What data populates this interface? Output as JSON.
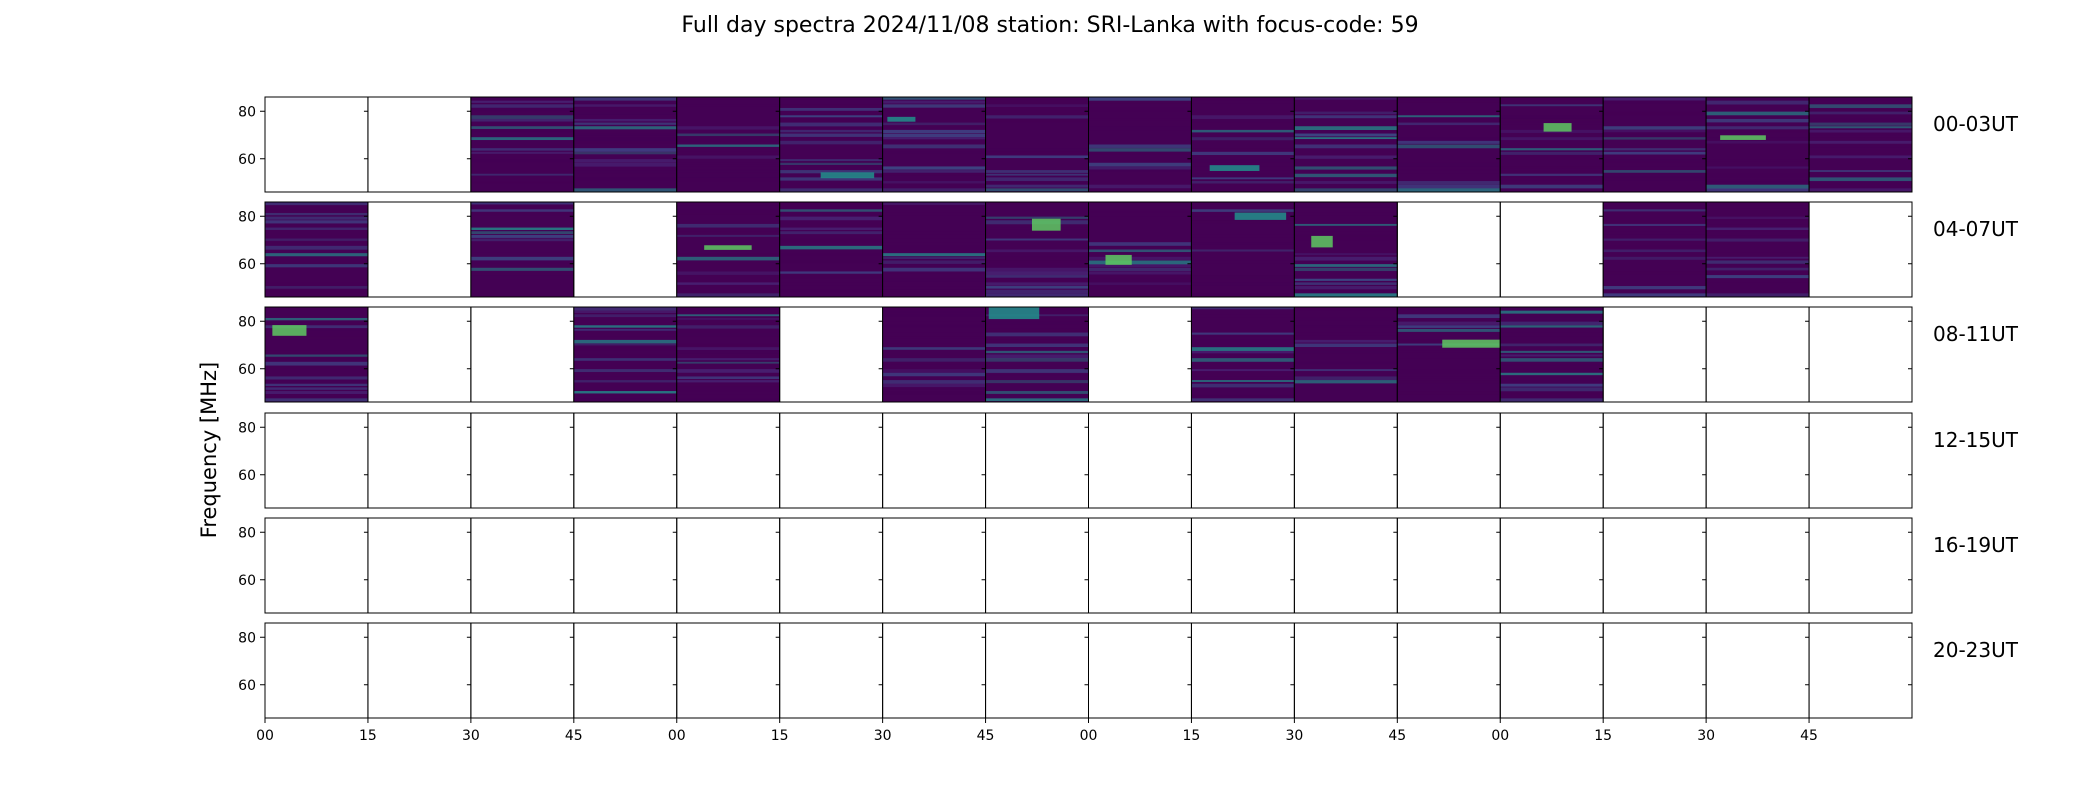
{
  "chart_data": {
    "type": "heatmap",
    "title": "Full day spectra 2024/11/08 station: SRI-Lanka with focus-code: 59",
    "ylabel": "Frequency [MHz]",
    "xlabel": "",
    "ylim": [
      46,
      86
    ],
    "yticks": [
      "60",
      "80"
    ],
    "xticks": [
      "00",
      "15",
      "30",
      "45",
      "00",
      "15",
      "30",
      "45",
      "00",
      "15",
      "30",
      "45",
      "00",
      "15",
      "30",
      "45"
    ],
    "colormap": "viridis",
    "row_labels": [
      "00-03UT",
      "04-07UT",
      "08-11UT",
      "12-15UT",
      "16-19UT",
      "20-23UT"
    ],
    "panels_per_row": 16,
    "panel_minutes": 15,
    "data_available": [
      [
        0,
        0,
        1,
        1,
        1,
        1,
        1,
        1,
        1,
        1,
        1,
        1,
        1,
        1,
        1,
        1
      ],
      [
        1,
        0,
        1,
        0,
        1,
        1,
        1,
        1,
        1,
        1,
        1,
        0,
        0,
        1,
        1,
        0
      ],
      [
        1,
        0,
        0,
        1,
        1,
        0,
        1,
        1,
        0,
        1,
        1,
        1,
        1,
        0,
        0,
        0
      ],
      [
        0,
        0,
        0,
        0,
        0,
        0,
        0,
        0,
        0,
        0,
        0,
        0,
        0,
        0,
        0,
        0
      ],
      [
        0,
        0,
        0,
        0,
        0,
        0,
        0,
        0,
        0,
        0,
        0,
        0,
        0,
        0,
        0,
        0
      ],
      [
        0,
        0,
        0,
        0,
        0,
        0,
        0,
        0,
        0,
        0,
        0,
        0,
        0,
        0,
        0,
        0
      ]
    ]
  },
  "colors": {
    "background": "#440154",
    "mid": "#3b528b",
    "teal": "#21918c",
    "green": "#5ec962",
    "yellow": "#fde725"
  }
}
